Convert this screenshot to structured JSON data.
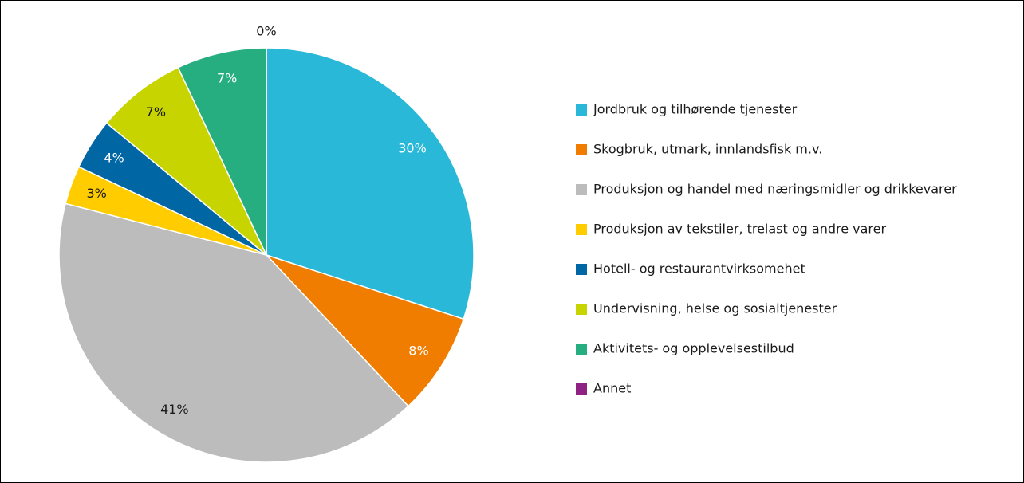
{
  "chart_data": {
    "type": "pie",
    "categories": [
      "Jordbruk og tilhørende tjenester",
      "Skogbruk, utmark, innlandsfisk m.v.",
      "Produksjon og handel med næringsmidler og drikkevarer",
      "Produksjon av tekstiler, trelast og andre varer",
      "Hotell- og restaurantvirksomehet",
      "Undervisning, helse og sosialtjenester",
      "Aktivitets- og opplevelsestilbud",
      "Annet"
    ],
    "values": [
      30,
      8,
      41,
      3,
      4,
      7,
      7,
      0
    ],
    "value_labels": [
      "30%",
      "8%",
      "41%",
      "3%",
      "4%",
      "7%",
      "7%",
      "0%"
    ],
    "colors": [
      "#29b8d8",
      "#f07d00",
      "#bcbcbc",
      "#ffcc00",
      "#0066a4",
      "#c8d400",
      "#26ae80",
      "#8e2383"
    ],
    "legend": "right"
  }
}
